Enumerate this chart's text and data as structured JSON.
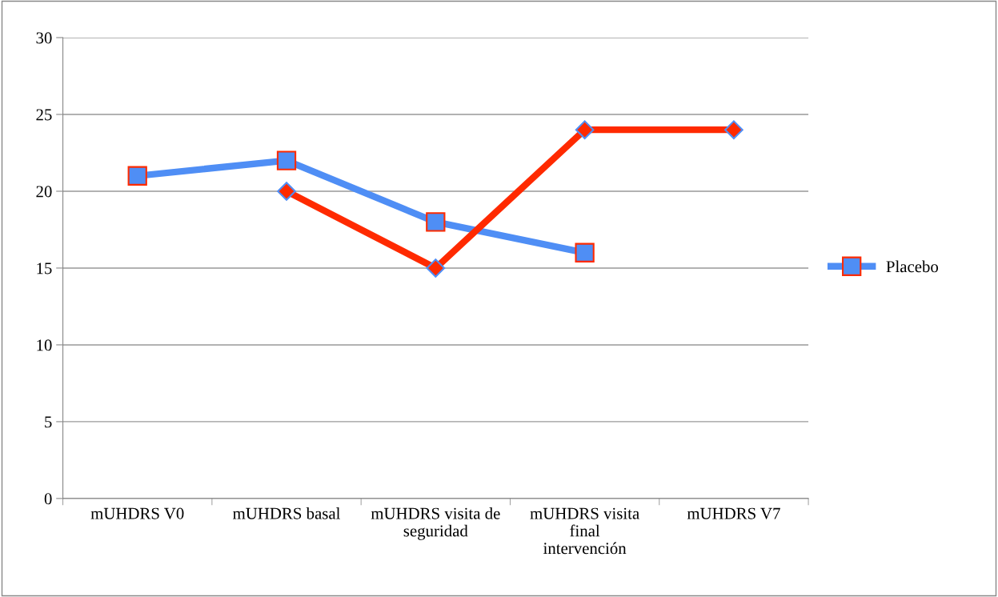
{
  "chart_data": {
    "type": "line",
    "categories": [
      "mUHDRS V0",
      "mUHDRS basal",
      "mUHDRS visita de seguridad",
      "mUHDRS visita final intervención",
      "mUHDRS V7"
    ],
    "series": [
      {
        "name": "Placebo",
        "color": "#4f8ef5",
        "marker": "square",
        "values": [
          21,
          22,
          18,
          16,
          null
        ]
      },
      {
        "color": "#ff2a00",
        "marker": "diamond",
        "values": [
          null,
          20,
          15,
          24,
          24
        ]
      }
    ],
    "ylim": [
      0,
      30
    ],
    "yticks": [
      0,
      5,
      10,
      15,
      20,
      25,
      30
    ],
    "grid": "y",
    "legend": "right",
    "line_style": "solid"
  }
}
